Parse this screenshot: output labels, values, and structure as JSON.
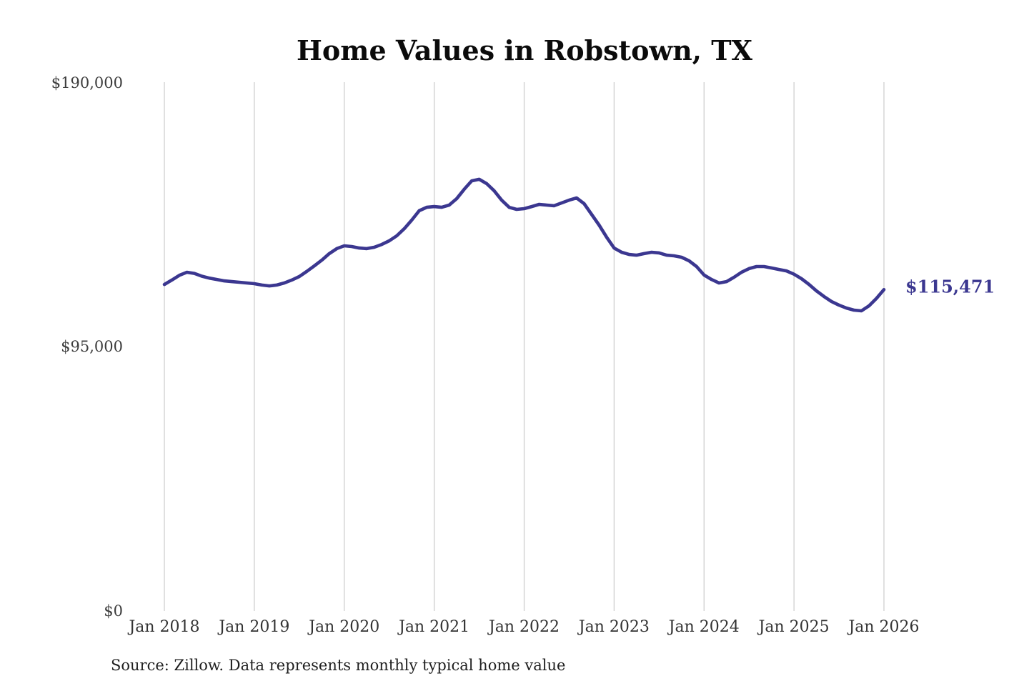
{
  "title": "Home Values in Robstown, TX",
  "source_note": "Source: Zillow. Data represents monthly typical home value",
  "colors": {
    "line": "#3b3790",
    "end_label": "#3b3790",
    "grid": "#cbcbcb",
    "title_text": "#0b0b0b",
    "tick_text": "#333333",
    "background": "#ffffff"
  },
  "chart_data": {
    "type": "line",
    "title": "Home Values in Robstown, TX",
    "xlabel": "",
    "ylabel": "",
    "ylim": [
      0,
      190000
    ],
    "grid": "vertical-only",
    "legend": "none",
    "y_tick_labels": [
      "$0",
      "$95,000",
      "$190,000"
    ],
    "y_tick_values": [
      0,
      95000,
      190000
    ],
    "x_tick_labels": [
      "Jan 2018",
      "Jan 2019",
      "Jan 2020",
      "Jan 2021",
      "Jan 2022",
      "Jan 2023",
      "Jan 2024",
      "Jan 2025",
      "Jan 2026"
    ],
    "series": [
      {
        "name": "Monthly typical home value",
        "unit": "USD",
        "start_month": "2018-01",
        "end_month": "2026-01",
        "end_value": 115471,
        "values": [
          117300,
          118900,
          120600,
          121700,
          121300,
          120300,
          119600,
          119100,
          118600,
          118350,
          118100,
          117850,
          117600,
          117100,
          116800,
          117100,
          117850,
          118900,
          120150,
          122000,
          124000,
          126050,
          128400,
          130200,
          131200,
          130950,
          130400,
          130200,
          130700,
          131700,
          133000,
          134800,
          137350,
          140450,
          143800,
          145050,
          145300,
          145050,
          145850,
          148150,
          151500,
          154550,
          155100,
          153550,
          151000,
          147600,
          145050,
          144300,
          144550,
          145300,
          146100,
          145850,
          145600,
          146600,
          147600,
          148400,
          146350,
          142500,
          138650,
          134300,
          130400,
          128900,
          128100,
          127850,
          128400,
          128900,
          128650,
          127850,
          127600,
          127100,
          125800,
          123750,
          120700,
          119100,
          117850,
          118350,
          119900,
          121700,
          123000,
          123750,
          123750,
          123250,
          122700,
          122200,
          121000,
          119400,
          117350,
          115000,
          113000,
          111200,
          109900,
          108850,
          108100,
          107850,
          109600,
          112300,
          115471
        ]
      }
    ],
    "annotations": [
      {
        "text": "$115,471",
        "position": "line-end"
      }
    ]
  }
}
